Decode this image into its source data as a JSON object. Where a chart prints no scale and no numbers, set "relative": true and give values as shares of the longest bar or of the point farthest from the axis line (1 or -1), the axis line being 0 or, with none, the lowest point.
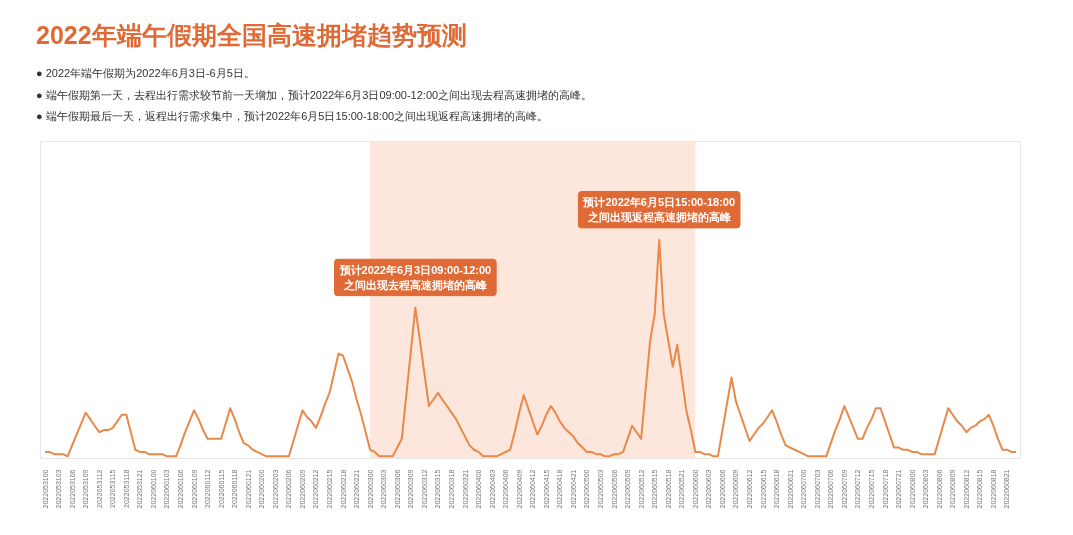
{
  "chart_data": {
    "type": "line",
    "title": "2022年端午假期全国高速拥堵趋势预测",
    "relative": true,
    "grid": false,
    "marker": "none",
    "line_style": "solid",
    "annotations": [
      "● 2022年端午假期为2022年6月3日-6月5日。",
      "● 端午假期第一天，去程出行需求较节前一天增加，预计2022年6月3日09:00-12:00之间出现去程高速拥堵的高峰。",
      "● 端午假期最后一天，返程出行需求集中，预计2022年6月5日15:00-18:00之间出现返程高速拥堵的高峰。",
      {
        "text": "预计2022年6月3日09:00-12:00\n之间出现去程高速拥堵的高峰",
        "y": 0.69
      },
      {
        "text": "预计2022年6月5日15:00-18:00\n之间出现返程高速拥堵的高峰",
        "y": 1.0
      }
    ],
    "bands": [
      {
        "axis": "x",
        "from": "2022060300",
        "to": "2022060600",
        "color": "#fde7dd"
      }
    ],
    "categories": [
      "2022053100",
      null,
      null,
      "2022053103",
      null,
      null,
      "2022053106",
      null,
      null,
      "2022053109",
      null,
      null,
      "2022053112",
      null,
      null,
      "2022053115",
      null,
      null,
      "2022053118",
      null,
      null,
      "2022053121",
      null,
      null,
      "2022060100",
      null,
      null,
      "2022060103",
      null,
      null,
      "2022060106",
      null,
      null,
      "2022060109",
      null,
      null,
      "2022060112",
      null,
      null,
      "2022060115",
      null,
      null,
      "2022060118",
      null,
      null,
      "2022060121",
      null,
      null,
      "2022060200",
      null,
      null,
      "2022060203",
      null,
      null,
      "2022060206",
      null,
      null,
      "2022060209",
      null,
      null,
      "2022060212",
      null,
      null,
      "2022060215",
      null,
      null,
      "2022060218",
      null,
      null,
      "2022060221",
      null,
      null,
      "2022060300",
      null,
      null,
      "2022060303",
      null,
      null,
      "2022060306",
      null,
      null,
      "2022060309",
      null,
      null,
      "2022060312",
      null,
      null,
      "2022060315",
      null,
      null,
      "2022060318",
      null,
      null,
      "2022060321",
      null,
      null,
      "2022060400",
      null,
      null,
      "2022060403",
      null,
      null,
      "2022060406",
      null,
      null,
      "2022060409",
      null,
      null,
      "2022060412",
      null,
      null,
      "2022060415",
      null,
      null,
      "2022060418",
      null,
      null,
      "2022060421",
      null,
      null,
      "2022060500",
      null,
      null,
      "2022060503",
      null,
      null,
      "2022060506",
      null,
      null,
      "2022060509",
      null,
      null,
      "2022060512",
      null,
      null,
      "2022060515",
      null,
      null,
      "2022060518",
      null,
      null,
      "2022060521",
      null,
      null,
      "2022060600",
      null,
      null,
      "2022060603",
      null,
      null,
      "2022060606",
      null,
      null,
      "2022060609",
      null,
      null,
      "2022060612",
      null,
      null,
      "2022060615",
      null,
      null,
      "2022060618",
      null,
      null,
      "2022060621",
      null,
      null,
      "2022060700",
      null,
      null,
      "2022060703",
      null,
      null,
      "2022060706",
      null,
      null,
      "2022060709",
      null,
      null,
      "2022060712",
      null,
      null,
      "2022060715",
      null,
      null,
      "2022060718",
      null,
      null,
      "2022060721",
      null,
      null,
      "2022060800",
      null,
      null,
      "2022060803",
      null,
      null,
      "2022060806",
      null,
      null,
      "2022060809",
      null,
      null,
      "2022060812",
      null,
      null,
      "2022060815",
      null,
      null,
      "2022060818",
      null,
      null,
      "2022060821",
      null,
      null
    ],
    "series": [
      {
        "color": "#e8894a",
        "values": [
          0.03,
          0.03,
          0.02,
          0.02,
          0.02,
          0.01,
          0.06,
          0.11,
          0.16,
          0.21,
          0.18,
          0.15,
          0.12,
          0.13,
          0.13,
          0.14,
          0.17,
          0.2,
          0.2,
          0.12,
          0.04,
          0.03,
          0.03,
          0.02,
          0.02,
          0.02,
          0.02,
          0.01,
          0.01,
          0.01,
          0.06,
          0.12,
          0.17,
          0.22,
          0.18,
          0.13,
          0.09,
          0.09,
          0.09,
          0.09,
          0.16,
          0.23,
          0.18,
          0.12,
          0.07,
          0.06,
          0.04,
          0.03,
          0.02,
          0.01,
          0.01,
          0.01,
          0.01,
          0.01,
          0.01,
          0.08,
          0.15,
          0.22,
          0.19,
          0.17,
          0.14,
          0.19,
          0.25,
          0.3,
          0.39,
          0.48,
          0.47,
          0.41,
          0.35,
          0.27,
          0.2,
          0.12,
          0.04,
          0.03,
          0.01,
          0.01,
          0.01,
          0.01,
          0.05,
          0.09,
          0.29,
          0.49,
          0.69,
          0.54,
          0.39,
          0.24,
          0.27,
          0.3,
          0.27,
          0.24,
          0.21,
          0.18,
          0.14,
          0.1,
          0.06,
          0.04,
          0.03,
          0.01,
          0.01,
          0.01,
          0.01,
          0.02,
          0.03,
          0.04,
          0.12,
          0.21,
          0.29,
          0.23,
          0.17,
          0.11,
          0.15,
          0.2,
          0.24,
          0.21,
          0.17,
          0.14,
          0.12,
          0.1,
          0.07,
          0.05,
          0.03,
          0.03,
          0.02,
          0.02,
          0.01,
          0.01,
          0.02,
          0.02,
          0.03,
          0.09,
          0.15,
          0.12,
          0.09,
          0.32,
          0.54,
          0.66,
          1.0,
          0.66,
          0.54,
          0.42,
          0.52,
          0.37,
          0.22,
          0.13,
          0.03,
          0.03,
          0.02,
          0.02,
          0.01,
          0.01,
          0.13,
          0.25,
          0.37,
          0.26,
          0.2,
          0.14,
          0.08,
          0.11,
          0.14,
          0.16,
          0.19,
          0.22,
          0.17,
          0.11,
          0.06,
          0.05,
          0.04,
          0.03,
          0.02,
          0.01,
          0.01,
          0.01,
          0.01,
          0.01,
          0.07,
          0.13,
          0.18,
          0.24,
          0.19,
          0.14,
          0.09,
          0.09,
          0.14,
          0.18,
          0.23,
          0.23,
          0.17,
          0.11,
          0.05,
          0.05,
          0.04,
          0.04,
          0.03,
          0.03,
          0.02,
          0.02,
          0.02,
          0.02,
          0.09,
          0.16,
          0.23,
          0.2,
          0.17,
          0.15,
          0.12,
          0.14,
          0.15,
          0.17,
          0.18,
          0.2,
          0.15,
          0.09,
          0.04,
          0.04,
          0.03,
          0.03
        ]
      }
    ]
  }
}
